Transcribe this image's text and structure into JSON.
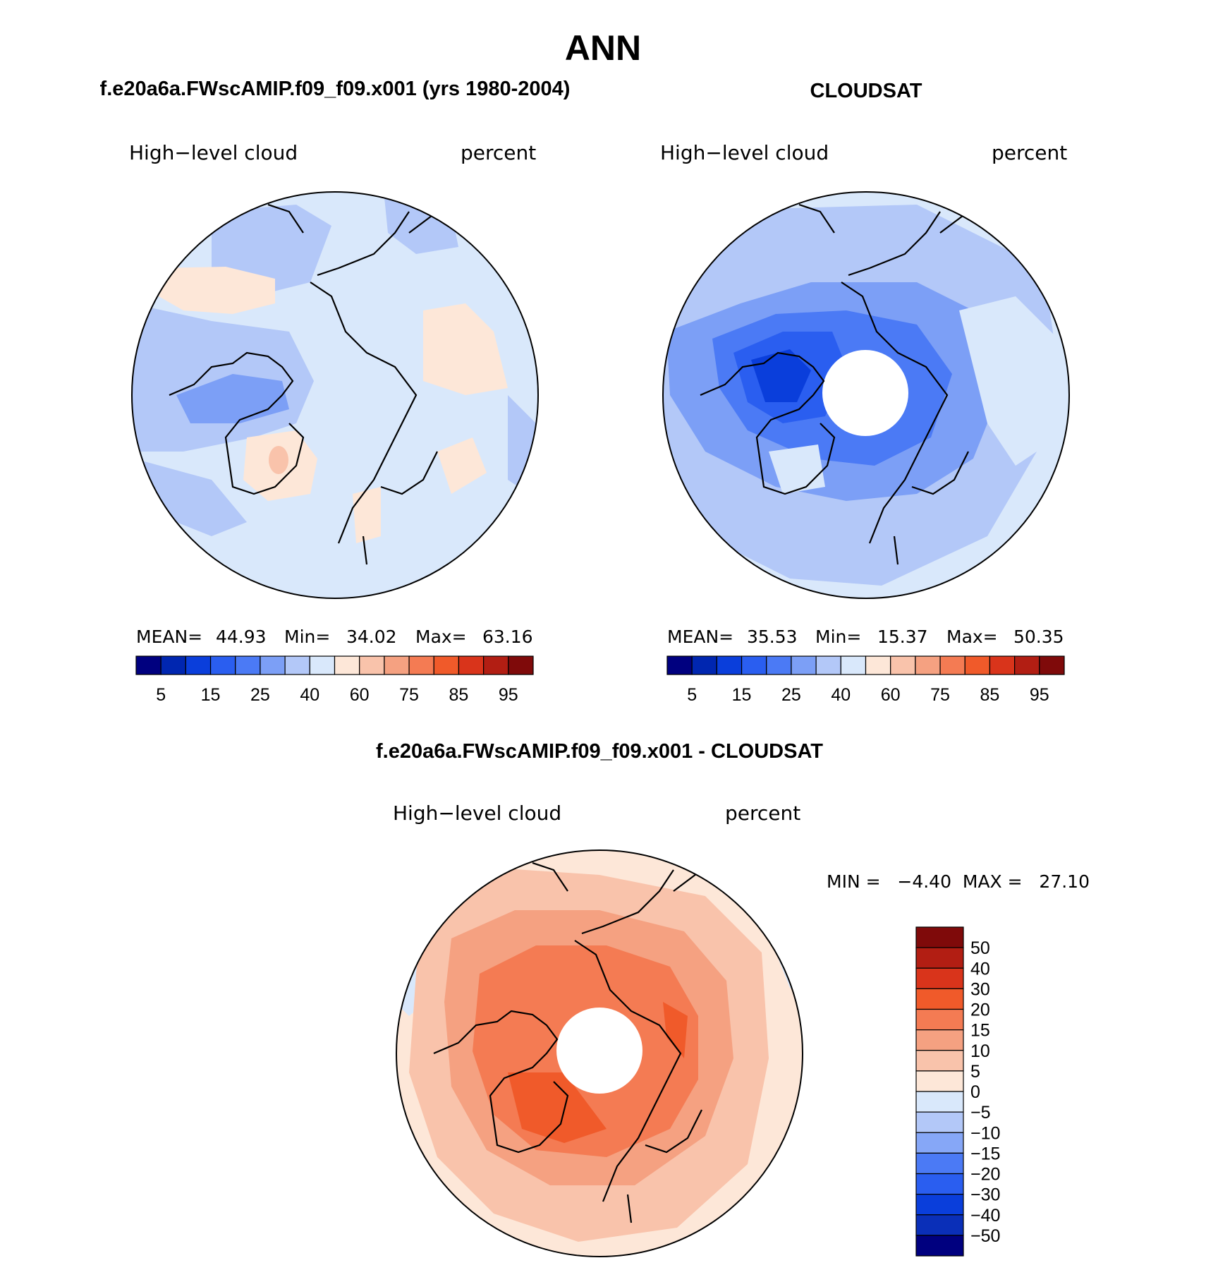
{
  "figure_title": "ANN",
  "colors": {
    "seq": [
      "#00007f",
      "#0026b0",
      "#0a3edb",
      "#2a5ef0",
      "#4b7af5",
      "#7c9ff6",
      "#b3c8f8",
      "#d9e8fb",
      "#fde7d8",
      "#f9c3ab",
      "#f5a181",
      "#f47b53",
      "#f05a2a",
      "#d9341b",
      "#b21e13",
      "#7f0a0a"
    ],
    "diff": [
      "#00007f",
      "#0a2fb8",
      "#0a3edb",
      "#2a5ef0",
      "#4b7af5",
      "#86a7f7",
      "#b3c8f8",
      "#d9e8fb",
      "#fde7d8",
      "#f9c3ab",
      "#f5a181",
      "#f47b53",
      "#f05a2a",
      "#d9341b",
      "#b21e13",
      "#7f0a0a"
    ],
    "land": "#000000"
  },
  "panels": [
    {
      "id": "model",
      "title": "f.e20a6a.FWscAMIP.f09_f09.x001 (yrs 1980-2004)",
      "left_label": "High−level cloud",
      "right_label": "percent",
      "stats": {
        "mean_label": "MEAN=",
        "mean": "44.93",
        "min_label": "Min=",
        "min": "34.02",
        "max_label": "Max=",
        "max": "63.16"
      },
      "colorbar_ticks": [
        "5",
        "15",
        "25",
        "40",
        "60",
        "75",
        "85",
        "95"
      ]
    },
    {
      "id": "obs",
      "title": "CLOUDSAT",
      "left_label": "High−level cloud",
      "right_label": "percent",
      "stats": {
        "mean_label": "MEAN=",
        "mean": "35.53",
        "min_label": "Min=",
        "min": "15.37",
        "max_label": "Max=",
        "max": "50.35"
      },
      "colorbar_ticks": [
        "5",
        "15",
        "25",
        "40",
        "60",
        "75",
        "85",
        "95"
      ]
    },
    {
      "id": "diff",
      "title": "f.e20a6a.FWscAMIP.f09_f09.x001 - CLOUDSAT",
      "left_label": "High−level cloud",
      "right_label": "percent",
      "minmax_text": "MIN =   −4.40  MAX =   27.10",
      "colorbar_ticks": [
        "50",
        "40",
        "30",
        "20",
        "15",
        "10",
        "5",
        "0",
        "−5",
        "−10",
        "−15",
        "−20",
        "−30",
        "−40",
        "−50"
      ]
    }
  ],
  "chart_data": [
    {
      "type": "heatmap",
      "title": "f.e20a6a.FWscAMIP.f09_f09.x001 (yrs 1980-2004)",
      "variable": "High-level cloud",
      "units": "percent",
      "projection": "north polar stereographic",
      "contour_levels": [
        5,
        10,
        15,
        20,
        25,
        30,
        40,
        50,
        60,
        70,
        75,
        80,
        85,
        90,
        95
      ],
      "mean": 44.93,
      "min": 34.02,
      "max": 63.16
    },
    {
      "type": "heatmap",
      "title": "CLOUDSAT",
      "variable": "High-level cloud",
      "units": "percent",
      "projection": "north polar stereographic",
      "contour_levels": [
        5,
        10,
        15,
        20,
        25,
        30,
        40,
        50,
        60,
        70,
        75,
        80,
        85,
        90,
        95
      ],
      "mean": 35.53,
      "min": 15.37,
      "max": 50.35
    },
    {
      "type": "heatmap",
      "title": "f.e20a6a.FWscAMIP.f09_f09.x001 - CLOUDSAT",
      "variable": "High-level cloud",
      "units": "percent",
      "projection": "north polar stereographic",
      "contour_levels": [
        -50,
        -40,
        -30,
        -20,
        -15,
        -10,
        -5,
        0,
        5,
        10,
        15,
        20,
        30,
        40,
        50
      ],
      "min": -4.4,
      "max": 27.1
    }
  ]
}
